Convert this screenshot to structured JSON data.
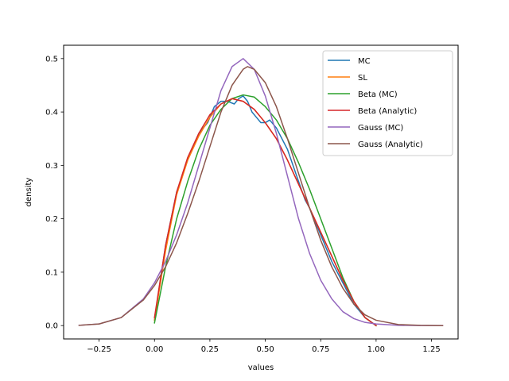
{
  "chart_data": {
    "type": "line",
    "title": "",
    "xlabel": "values",
    "ylabel": "density",
    "xlim": [
      -0.41,
      1.37
    ],
    "ylim": [
      -0.025,
      0.525
    ],
    "xticks": [
      -0.25,
      0.0,
      0.25,
      0.5,
      0.75,
      1.0,
      1.25
    ],
    "xtick_labels": [
      "−0.25",
      "0.00",
      "0.25",
      "0.50",
      "0.75",
      "1.00",
      "1.25"
    ],
    "yticks": [
      0.0,
      0.1,
      0.2,
      0.3,
      0.4,
      0.5
    ],
    "ytick_labels": [
      "0.0",
      "0.1",
      "0.2",
      "0.3",
      "0.4",
      "0.5"
    ],
    "legend_position": "top-right",
    "grid": false,
    "series": [
      {
        "name": "MC",
        "color": "#1f77b4",
        "x": [
          0.0,
          0.05,
          0.1,
          0.15,
          0.2,
          0.24,
          0.27,
          0.3,
          0.33,
          0.36,
          0.38,
          0.4,
          0.42,
          0.44,
          0.46,
          0.48,
          0.5,
          0.52,
          0.55,
          0.6,
          0.65,
          0.68,
          0.7,
          0.75,
          0.8,
          0.85,
          0.9,
          0.95,
          1.0
        ],
        "y": [
          0.01,
          0.15,
          0.25,
          0.31,
          0.36,
          0.38,
          0.41,
          0.42,
          0.42,
          0.415,
          0.425,
          0.43,
          0.42,
          0.4,
          0.39,
          0.38,
          0.38,
          0.385,
          0.37,
          0.33,
          0.27,
          0.235,
          0.22,
          0.17,
          0.12,
          0.08,
          0.04,
          0.015,
          0.0
        ]
      },
      {
        "name": "SL",
        "color": "#ff7f0e",
        "x": [
          0.0,
          0.05,
          0.1,
          0.15,
          0.2,
          0.25,
          0.3,
          0.35,
          0.4,
          0.45,
          0.5,
          0.55,
          0.6,
          0.65,
          0.7,
          0.75,
          0.8,
          0.85,
          0.9,
          0.95,
          1.0
        ],
        "y": [
          0.01,
          0.14,
          0.245,
          0.31,
          0.355,
          0.39,
          0.415,
          0.425,
          0.42,
          0.405,
          0.38,
          0.35,
          0.31,
          0.265,
          0.22,
          0.175,
          0.13,
          0.085,
          0.045,
          0.015,
          0.0
        ]
      },
      {
        "name": "Beta (MC)",
        "color": "#2ca02c",
        "x": [
          0.0,
          0.05,
          0.1,
          0.15,
          0.2,
          0.25,
          0.3,
          0.35,
          0.4,
          0.45,
          0.5,
          0.55,
          0.6,
          0.65,
          0.7,
          0.75,
          0.8,
          0.85,
          0.9,
          0.95,
          1.0
        ],
        "y": [
          0.005,
          0.11,
          0.2,
          0.27,
          0.33,
          0.375,
          0.405,
          0.425,
          0.432,
          0.428,
          0.41,
          0.385,
          0.35,
          0.305,
          0.255,
          0.2,
          0.145,
          0.09,
          0.045,
          0.015,
          0.0
        ]
      },
      {
        "name": "Beta (Analytic)",
        "color": "#d62728",
        "x": [
          0.0,
          0.05,
          0.1,
          0.15,
          0.2,
          0.25,
          0.3,
          0.35,
          0.4,
          0.45,
          0.5,
          0.55,
          0.6,
          0.65,
          0.7,
          0.75,
          0.8,
          0.85,
          0.9,
          0.95,
          1.0
        ],
        "y": [
          0.015,
          0.15,
          0.25,
          0.315,
          0.36,
          0.395,
          0.415,
          0.425,
          0.42,
          0.405,
          0.38,
          0.35,
          0.31,
          0.265,
          0.22,
          0.175,
          0.13,
          0.085,
          0.045,
          0.015,
          0.0
        ]
      },
      {
        "name": "Gauss (MC)",
        "color": "#9467bd",
        "x": [
          -0.34,
          -0.25,
          -0.15,
          -0.05,
          0.0,
          0.05,
          0.1,
          0.15,
          0.2,
          0.25,
          0.3,
          0.35,
          0.4,
          0.45,
          0.5,
          0.55,
          0.6,
          0.65,
          0.7,
          0.75,
          0.8,
          0.85,
          0.9,
          0.95,
          1.0,
          1.1,
          1.2,
          1.3
        ],
        "y": [
          0.0005,
          0.003,
          0.015,
          0.05,
          0.08,
          0.12,
          0.17,
          0.23,
          0.3,
          0.37,
          0.44,
          0.485,
          0.5,
          0.48,
          0.43,
          0.36,
          0.28,
          0.2,
          0.135,
          0.085,
          0.05,
          0.026,
          0.013,
          0.006,
          0.003,
          0.0005,
          0.0,
          0.0
        ]
      },
      {
        "name": "Gauss (Analytic)",
        "color": "#8c564b",
        "x": [
          -0.34,
          -0.25,
          -0.15,
          -0.05,
          0.0,
          0.05,
          0.1,
          0.15,
          0.2,
          0.25,
          0.3,
          0.35,
          0.4,
          0.42,
          0.45,
          0.5,
          0.55,
          0.6,
          0.65,
          0.7,
          0.75,
          0.8,
          0.85,
          0.9,
          0.95,
          1.0,
          1.1,
          1.2,
          1.3
        ],
        "y": [
          0.0005,
          0.003,
          0.015,
          0.048,
          0.075,
          0.11,
          0.155,
          0.21,
          0.27,
          0.335,
          0.4,
          0.45,
          0.48,
          0.485,
          0.48,
          0.455,
          0.41,
          0.35,
          0.285,
          0.22,
          0.16,
          0.11,
          0.07,
          0.04,
          0.02,
          0.01,
          0.002,
          0.0005,
          0.0
        ]
      }
    ]
  }
}
